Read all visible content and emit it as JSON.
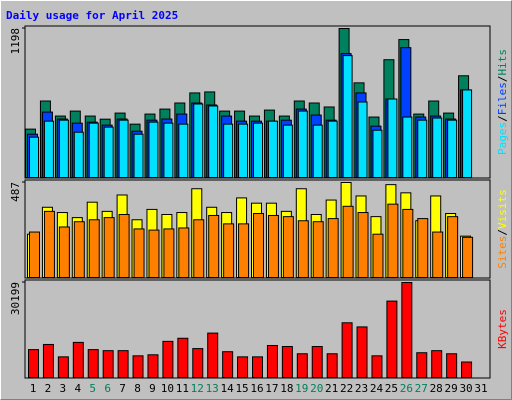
{
  "chart_data": [
    {
      "type": "bar",
      "title": "Daily usage for April 2025",
      "ylim": [
        0,
        1198
      ],
      "yticks": [
        1198
      ],
      "legend_separator": "/",
      "series": [
        {
          "name": "Hits",
          "color": "#00805c",
          "values": [
            389,
            615,
            494,
            534,
            494,
            469,
            518,
            429,
            510,
            550,
            599,
            680,
            688,
            534,
            534,
            494,
            542,
            494,
            615,
            599,
            567,
            1198,
            761,
            486,
            947,
            1109,
            510,
            615,
            518,
            818,
            null
          ]
        },
        {
          "name": "Files",
          "color": "#0040ff",
          "values": [
            348,
            526,
            470,
            437,
            445,
            421,
            470,
            372,
            461,
            470,
            510,
            599,
            583,
            494,
            453,
            453,
            453,
            461,
            550,
            502,
            461,
            996,
            680,
            413,
            631,
            1044,
            486,
            494,
            470,
            704,
            null
          ]
        },
        {
          "name": "Pages",
          "color": "#00e0ff",
          "values": [
            324,
            453,
            461,
            364,
            437,
            405,
            461,
            348,
            445,
            437,
            429,
            591,
            575,
            429,
            429,
            437,
            453,
            421,
            534,
            421,
            453,
            980,
            607,
            380,
            631,
            486,
            461,
            478,
            461,
            704,
            null
          ]
        }
      ]
    },
    {
      "type": "bar",
      "ylim": [
        0,
        487
      ],
      "yticks": [
        487
      ],
      "legend_separator": "/",
      "series": [
        {
          "name": "Visits",
          "color": "#ffff00",
          "values": [
            222,
            360,
            333,
            307,
            386,
            339,
            423,
            296,
            349,
            323,
            333,
            455,
            360,
            333,
            408,
            381,
            381,
            339,
            455,
            323,
            397,
            487,
            418,
            312,
            476,
            434,
            291,
            418,
            328,
            212,
            null
          ]
        },
        {
          "name": "Sites",
          "color": "#ff8000",
          "values": [
            233,
            339,
            259,
            286,
            296,
            307,
            323,
            249,
            243,
            249,
            254,
            296,
            318,
            275,
            275,
            328,
            318,
            312,
            291,
            286,
            302,
            365,
            333,
            222,
            376,
            349,
            302,
            233,
            312,
            206,
            null
          ]
        }
      ]
    },
    {
      "type": "bar",
      "ylim": [
        0,
        30199
      ],
      "yticks": [
        30199
      ],
      "categories": [
        "1",
        "2",
        "3",
        "4",
        "5",
        "6",
        "7",
        "8",
        "9",
        "10",
        "11",
        "12",
        "13",
        "14",
        "15",
        "16",
        "17",
        "18",
        "19",
        "20",
        "21",
        "22",
        "23",
        "24",
        "25",
        "26",
        "27",
        "28",
        "29",
        "30",
        "31"
      ],
      "category_colors": [
        "#000000",
        "#000000",
        "#000000",
        "#000000",
        "#00805c",
        "#00805c",
        "#000000",
        "#000000",
        "#000000",
        "#000000",
        "#000000",
        "#00805c",
        "#00805c",
        "#000000",
        "#000000",
        "#000000",
        "#000000",
        "#000000",
        "#00805c",
        "#00805c",
        "#000000",
        "#000000",
        "#000000",
        "#000000",
        "#000000",
        "#00805c",
        "#00805c",
        "#000000",
        "#000000",
        "#000000",
        "#000000"
      ],
      "series": [
        {
          "name": "KBytes",
          "color": "#ff0000",
          "values": [
            8863,
            10504,
            6565,
            11161,
            8863,
            8535,
            8535,
            6893,
            7222,
            11489,
            12474,
            9191,
            14115,
            8206,
            6565,
            6565,
            10176,
            9848,
            7550,
            9848,
            7550,
            17397,
            16084,
            6893,
            24290,
            30199,
            7878,
            8535,
            7550,
            4924,
            null
          ]
        }
      ]
    }
  ]
}
